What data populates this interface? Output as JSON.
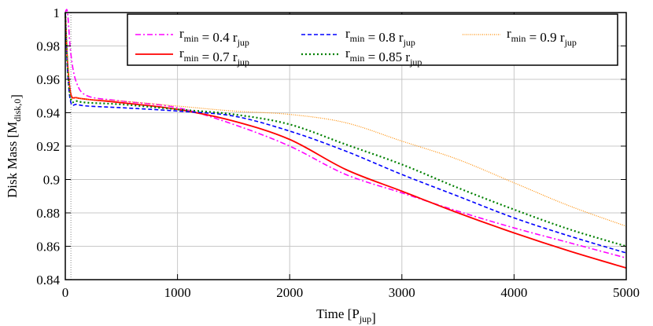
{
  "chart_data": {
    "type": "line",
    "xlabel": "Time [P_{jup}]",
    "ylabel": "Disk Mass [M_{disk,0}]",
    "xlim": [
      0,
      5000
    ],
    "ylim": [
      0.84,
      1.0
    ],
    "xticks": [
      "0",
      "1000",
      "2000",
      "3000",
      "4000",
      "5000"
    ],
    "yticks": [
      "0.84",
      "0.86",
      "0.88",
      "0.9",
      "0.92",
      "0.94",
      "0.96",
      "0.98",
      "1"
    ],
    "grid": true,
    "legend_position": "top-right",
    "vertical_marker_x": 50,
    "series": [
      {
        "name": "r_{min} = 0.4 r_{jup}",
        "color": "#ff00ff",
        "dash": "dashdot",
        "x": [
          0,
          20,
          50,
          100,
          200,
          500,
          1000,
          1500,
          2000,
          2500,
          3000,
          3500,
          4000,
          4500,
          5000
        ],
        "y": [
          1.0,
          1.0,
          0.975,
          0.958,
          0.95,
          0.947,
          0.943,
          0.933,
          0.92,
          0.903,
          0.892,
          0.881,
          0.871,
          0.862,
          0.853
        ]
      },
      {
        "name": "r_{min} = 0.7 r_{jup}",
        "color": "#ff0000",
        "dash": "solid",
        "x": [
          0,
          20,
          50,
          100,
          200,
          500,
          1000,
          1500,
          2000,
          2500,
          3000,
          3500,
          4000,
          4500,
          5000
        ],
        "y": [
          1.0,
          0.97,
          0.951,
          0.949,
          0.948,
          0.946,
          0.942,
          0.935,
          0.924,
          0.906,
          0.893,
          0.88,
          0.868,
          0.857,
          0.847
        ]
      },
      {
        "name": "r_{min} = 0.8 r_{jup}",
        "color": "#0000ff",
        "dash": "dashed",
        "x": [
          0,
          20,
          50,
          100,
          200,
          500,
          1000,
          1500,
          2000,
          2500,
          3000,
          3500,
          4000,
          4500,
          5000
        ],
        "y": [
          1.0,
          0.965,
          0.946,
          0.945,
          0.944,
          0.943,
          0.941,
          0.938,
          0.929,
          0.917,
          0.903,
          0.89,
          0.877,
          0.866,
          0.856
        ]
      },
      {
        "name": "r_{min} = 0.85 r_{jup}",
        "color": "#008000",
        "dash": "dotted",
        "x": [
          0,
          20,
          50,
          100,
          200,
          500,
          1000,
          1500,
          2000,
          2500,
          3000,
          3500,
          4000,
          4500,
          5000
        ],
        "y": [
          1.0,
          0.968,
          0.948,
          0.947,
          0.946,
          0.945,
          0.942,
          0.939,
          0.933,
          0.921,
          0.909,
          0.895,
          0.882,
          0.87,
          0.86
        ]
      },
      {
        "name": "r_{min} = 0.9 r_{jup}",
        "color": "#ff8c00",
        "dash": "finedot",
        "x": [
          0,
          20,
          50,
          100,
          200,
          500,
          1000,
          1500,
          2000,
          2500,
          3000,
          3500,
          4000,
          4500,
          5000
        ],
        "y": [
          1.0,
          0.97,
          0.95,
          0.949,
          0.948,
          0.947,
          0.944,
          0.941,
          0.939,
          0.934,
          0.923,
          0.912,
          0.898,
          0.884,
          0.872
        ]
      }
    ]
  }
}
